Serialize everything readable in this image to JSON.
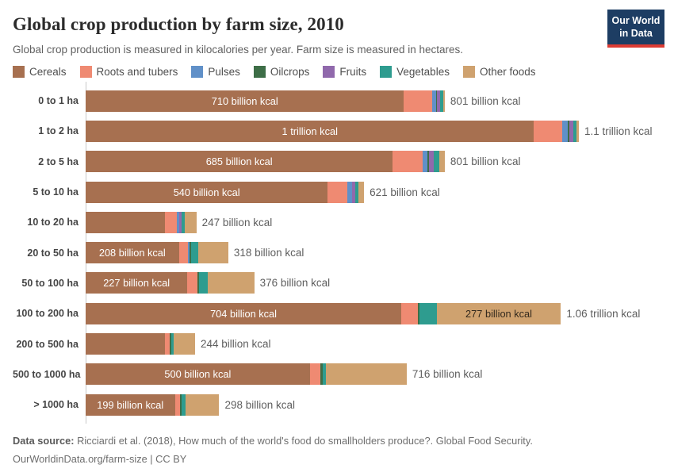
{
  "header": {
    "title": "Global crop production by farm size, 2010",
    "subtitle": "Global crop production is measured in kilocalories per year. Farm size is measured in hectares.",
    "logo": {
      "line1": "Our World",
      "line2": "in Data",
      "bg_color": "#1d3d63",
      "accent_color": "#dc3b33"
    }
  },
  "legend": [
    {
      "label": "Cereals",
      "color": "#a77050"
    },
    {
      "label": "Roots and tubers",
      "color": "#ef8a72"
    },
    {
      "label": "Pulses",
      "color": "#6090c8"
    },
    {
      "label": "Oilcrops",
      "color": "#3d6e47"
    },
    {
      "label": "Fruits",
      "color": "#9069ac"
    },
    {
      "label": "Vegetables",
      "color": "#2e9c8f"
    },
    {
      "label": "Other foods",
      "color": "#cfa26f"
    }
  ],
  "chart_data": {
    "type": "bar",
    "orientation": "horizontal",
    "stacked": true,
    "unit": "billion kcal per year",
    "x_max_billion": 1100,
    "series_names": [
      "Cereals",
      "Roots and tubers",
      "Pulses",
      "Oilcrops",
      "Fruits",
      "Vegetables",
      "Other foods"
    ],
    "series_colors": [
      "#a77050",
      "#ef8a72",
      "#6090c8",
      "#3d6e47",
      "#9069ac",
      "#2e9c8f",
      "#cfa26f"
    ],
    "rows": [
      {
        "category": "0 to 1 ha",
        "values": [
          710,
          62,
          9,
          2,
          7,
          8,
          3
        ],
        "total": 801,
        "bar_label": "710 billion kcal",
        "total_label": "801 billion kcal"
      },
      {
        "category": "1 to 2 ha",
        "values": [
          1000,
          62,
          14,
          2,
          9,
          8,
          5
        ],
        "total": 1100,
        "bar_label": "1 trillion kcal",
        "total_label": "1.1 trillion kcal"
      },
      {
        "category": "2 to 5 ha",
        "values": [
          685,
          67,
          10,
          4,
          10,
          13,
          12
        ],
        "total": 801,
        "bar_label": "685 billion kcal",
        "total_label": "801 billion kcal"
      },
      {
        "category": "5 to 10 ha",
        "values": [
          540,
          44,
          10,
          1,
          7,
          7,
          12
        ],
        "total": 621,
        "bar_label": "540 billion kcal",
        "total_label": "621 billion kcal"
      },
      {
        "category": "10 to 20 ha",
        "values": [
          177,
          27,
          4,
          1,
          5,
          7,
          26
        ],
        "total": 247,
        "bar_label": "",
        "total_label": "247 billion kcal"
      },
      {
        "category": "20 to 50 ha",
        "values": [
          208,
          21,
          3,
          3,
          0,
          17,
          66
        ],
        "total": 318,
        "bar_label": "208 billion kcal",
        "total_label": "318 billion kcal"
      },
      {
        "category": "50 to 100 ha",
        "values": [
          227,
          23,
          0,
          3,
          0,
          20,
          103
        ],
        "total": 376,
        "bar_label": "227 billion kcal",
        "total_label": "376 billion kcal"
      },
      {
        "category": "100 to 200 ha",
        "values": [
          704,
          37,
          0,
          3,
          0,
          39,
          277
        ],
        "total": 1060,
        "bar_label": "704 billion kcal",
        "end_label": "277 billion kcal",
        "total_label": "1.06 trillion kcal"
      },
      {
        "category": "200 to 500 ha",
        "values": [
          177,
          11,
          0,
          3,
          0,
          5,
          48
        ],
        "total": 244,
        "bar_label": "",
        "total_label": "244 billion kcal"
      },
      {
        "category": "500 to 1000 ha",
        "values": [
          500,
          23,
          0,
          5,
          0,
          8,
          180
        ],
        "total": 716,
        "bar_label": "500 billion kcal",
        "total_label": "716 billion kcal"
      },
      {
        "category": "> 1000 ha",
        "values": [
          199,
          12,
          0,
          3,
          0,
          8,
          76
        ],
        "total": 298,
        "bar_label": "199 billion kcal",
        "total_label": "298 billion kcal"
      }
    ]
  },
  "footer": {
    "source_prefix": "Data source:",
    "source_text": " Ricciardi et al. (2018), How much of the world's food do smallholders produce?. Global Food Security.",
    "license_line": "OurWorldinData.org/farm-size | CC BY"
  }
}
